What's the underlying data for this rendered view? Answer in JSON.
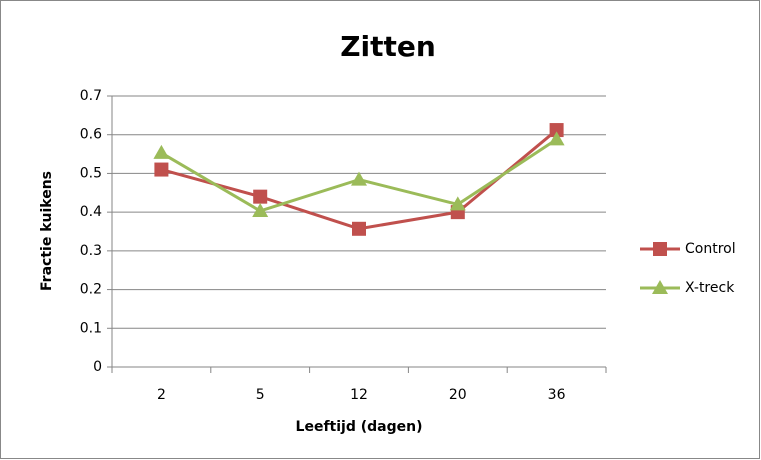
{
  "chart_data": {
    "type": "line",
    "title": "Zitten",
    "x_label": "Leeftijd (dagen)",
    "y_label": "Fractie kuikens",
    "categories": [
      "2",
      "5",
      "12",
      "20",
      "36"
    ],
    "series": [
      {
        "name": "Control",
        "color": "#c0504d",
        "marker": "square",
        "values": [
          0.51,
          0.44,
          0.357,
          0.4,
          0.612
        ]
      },
      {
        "name": "X-treck",
        "color": "#9bbb59",
        "marker": "triangle",
        "values": [
          0.553,
          0.403,
          0.484,
          0.42,
          0.588
        ]
      }
    ],
    "ylim": [
      0,
      0.7
    ],
    "yticks": [
      0,
      0.1,
      0.2,
      0.3,
      0.4,
      0.5,
      0.6,
      0.7
    ],
    "grid": true,
    "legend": "right"
  }
}
